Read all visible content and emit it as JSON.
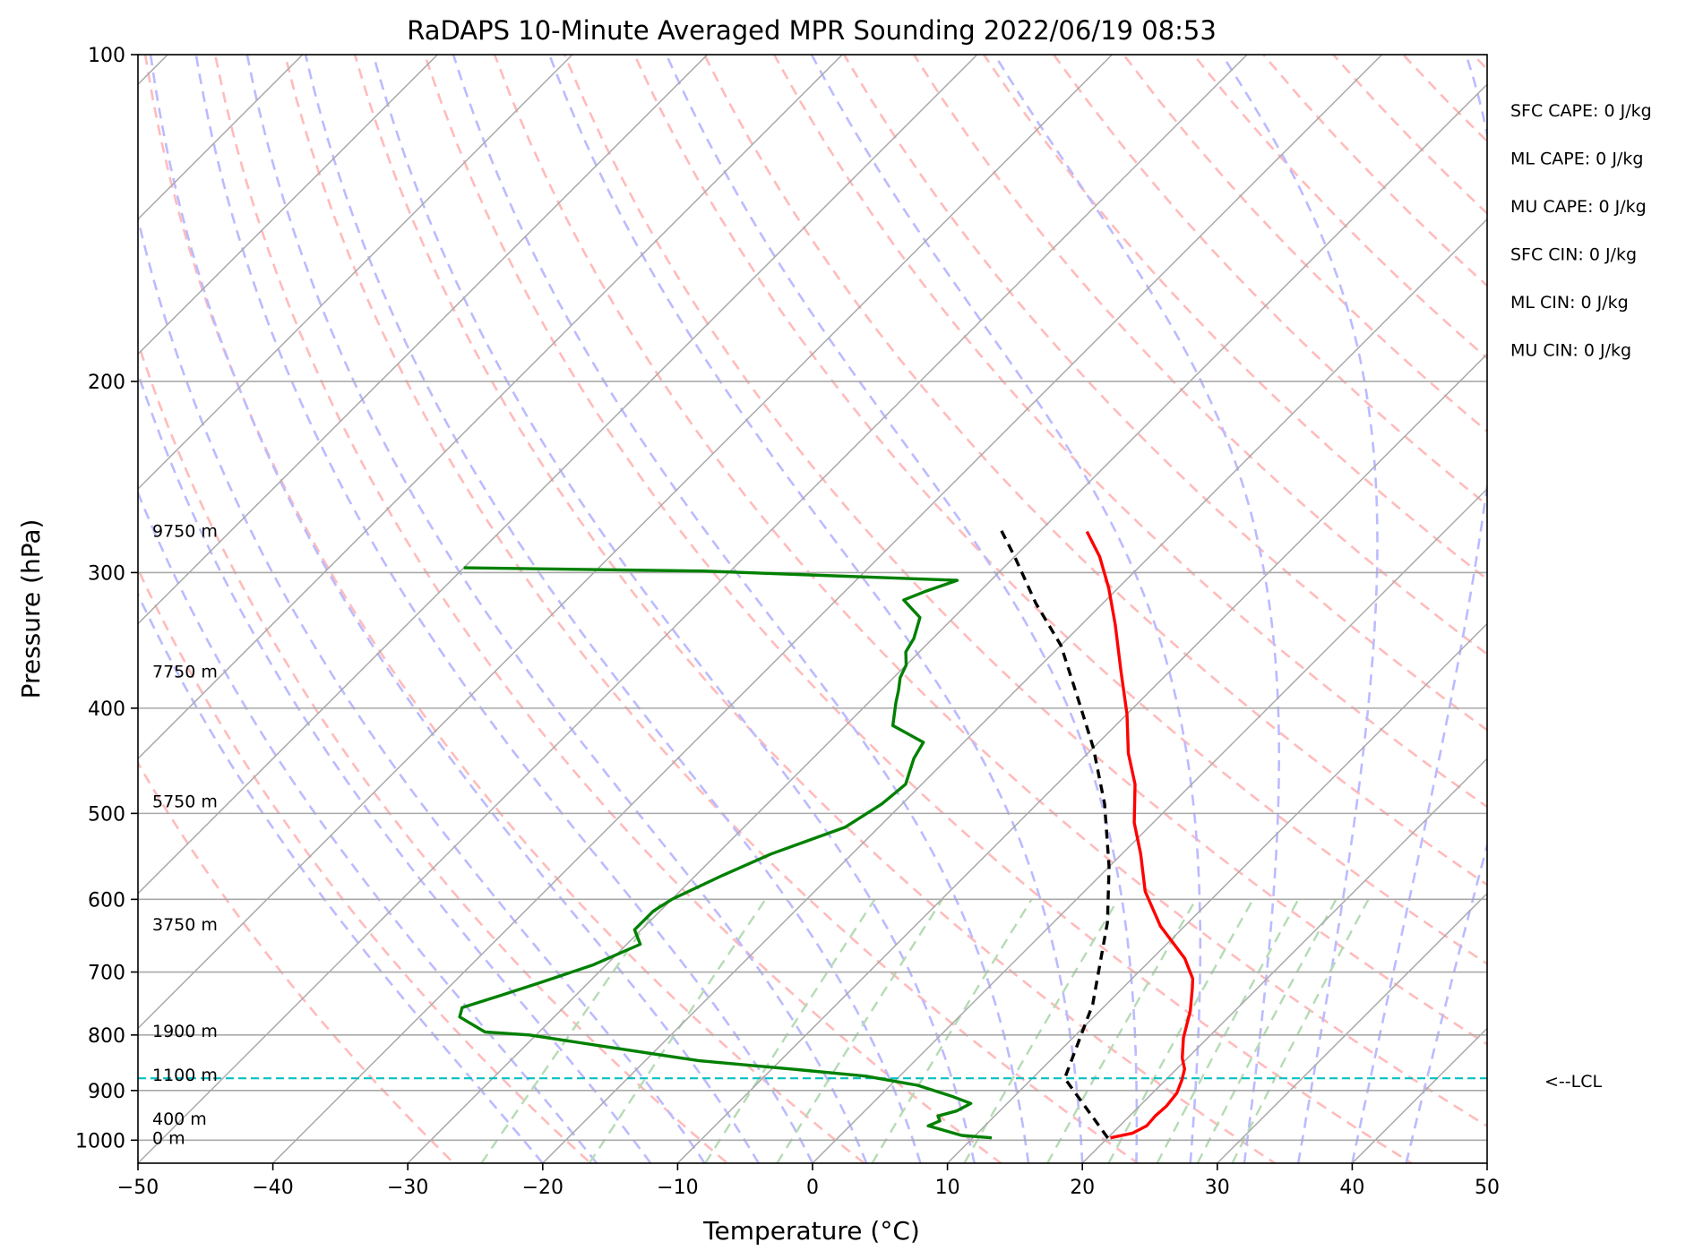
{
  "chart_data": {
    "type": "line",
    "title": "RaDAPS 10-Minute Averaged MPR Sounding 2022/06/19 08:53",
    "xlabel": "Temperature (°C)",
    "ylabel": "Pressure (hPa)",
    "xlim": [
      -50,
      50
    ],
    "ylim": [
      1050,
      100
    ],
    "y_scale": "log",
    "grid": true,
    "x_ticks": [
      -50,
      -40,
      -30,
      -20,
      -10,
      0,
      10,
      20,
      30,
      40,
      50
    ],
    "x_tick_labels": [
      "−50",
      "−40",
      "−30",
      "−20",
      "−10",
      "0",
      "10",
      "20",
      "30",
      "40",
      "50"
    ],
    "y_ticks": [
      100,
      200,
      300,
      400,
      500,
      600,
      700,
      800,
      900,
      1000
    ],
    "y_tick_labels": [
      "100",
      "200",
      "300",
      "400",
      "500",
      "600",
      "700",
      "800",
      "900",
      "1000"
    ],
    "series": [
      {
        "role": "temperature",
        "color": "#ff0000",
        "points": [
          [
            20.2,
            995
          ],
          [
            21.5,
            985
          ],
          [
            22.0,
            970
          ],
          [
            21.9,
            950
          ],
          [
            22.0,
            930
          ],
          [
            21.8,
            905
          ],
          [
            21.2,
            880
          ],
          [
            20.6,
            860
          ],
          [
            19.6,
            840
          ],
          [
            18.2,
            805
          ],
          [
            16.7,
            760
          ],
          [
            15.2,
            725
          ],
          [
            14.5,
            710
          ],
          [
            12.4,
            680
          ],
          [
            8.2,
            635
          ],
          [
            4.5,
            590
          ],
          [
            1.4,
            545
          ],
          [
            -1.4,
            510
          ],
          [
            -4.2,
            470
          ],
          [
            -7.0,
            440
          ],
          [
            -10.0,
            405
          ],
          [
            -13.6,
            370
          ],
          [
            -17.5,
            335
          ],
          [
            -20.7,
            310
          ],
          [
            -23.7,
            290
          ],
          [
            -26.5,
            275
          ]
        ]
      },
      {
        "role": "dewpoint",
        "color": "#008000",
        "points": [
          [
            11.4,
            995
          ],
          [
            9.0,
            990
          ],
          [
            5.8,
            970
          ],
          [
            6.3,
            960
          ],
          [
            5.8,
            950
          ],
          [
            6.8,
            940
          ],
          [
            7.3,
            925
          ],
          [
            5.5,
            912
          ],
          [
            2.0,
            890
          ],
          [
            -2.5,
            873
          ],
          [
            -8.5,
            860
          ],
          [
            -16.0,
            845
          ],
          [
            -24.0,
            820
          ],
          [
            -30.5,
            800
          ],
          [
            -34.0,
            795
          ],
          [
            -37.0,
            770
          ],
          [
            -37.5,
            755
          ],
          [
            -35.5,
            735
          ],
          [
            -33.5,
            715
          ],
          [
            -31.0,
            690
          ],
          [
            -29.0,
            660
          ],
          [
            -30.5,
            640
          ],
          [
            -30.5,
            615
          ],
          [
            -30.0,
            600
          ],
          [
            -28.0,
            570
          ],
          [
            -26.0,
            545
          ],
          [
            -22.5,
            515
          ],
          [
            -21.5,
            490
          ],
          [
            -21.2,
            470
          ],
          [
            -22.5,
            445
          ],
          [
            -23.0,
            430
          ],
          [
            -26.5,
            415
          ],
          [
            -28.0,
            395
          ],
          [
            -28.7,
            385
          ],
          [
            -29.5,
            375
          ],
          [
            -30.0,
            365
          ],
          [
            -31.0,
            355
          ],
          [
            -31.4,
            345
          ],
          [
            -32.5,
            330
          ],
          [
            -35.0,
            318
          ],
          [
            -34.0,
            312
          ],
          [
            -32.5,
            305
          ],
          [
            -52.0,
            299
          ],
          [
            -70.0,
            297
          ]
        ]
      },
      {
        "role": "parcel",
        "color": "#000000",
        "style": "dashed",
        "points": [
          [
            20.0,
            995
          ],
          [
            12.4,
            877
          ],
          [
            9.0,
            750
          ],
          [
            4.0,
            630
          ],
          [
            0.0,
            560
          ],
          [
            -5.0,
            490
          ],
          [
            -10.0,
            435
          ],
          [
            -15.0,
            390
          ],
          [
            -20.0,
            350
          ],
          [
            -25.0,
            320
          ],
          [
            -30.0,
            290
          ],
          [
            -33.0,
            274
          ]
        ]
      }
    ],
    "background_lines": {
      "isotherms_color": "#a9a9a9",
      "dry_adiabats_color": "#ffbbbb",
      "moist_adiabats_color": "#bbbbff",
      "mixing_ratio_color": "#b5dbb5",
      "lcl_line_color": "#00c0c0",
      "lcl_pressure": 877
    },
    "height_labels": [
      {
        "text": "9750 m",
        "p": 276
      },
      {
        "text": "7750 m",
        "p": 372
      },
      {
        "text": "5750 m",
        "p": 490
      },
      {
        "text": "3750 m",
        "p": 636
      },
      {
        "text": "1900 m",
        "p": 797
      },
      {
        "text": "1100 m",
        "p": 875
      },
      {
        "text": "400 m",
        "p": 960
      },
      {
        "text": "0 m",
        "p": 1000
      }
    ],
    "lcl_label": "<--LCL",
    "indices": [
      "SFC CAPE: 0 J/kg",
      "ML CAPE: 0 J/kg",
      "MU CAPE: 0 J/kg",
      "SFC CIN: 0 J/kg",
      "ML CIN: 0 J/kg",
      "MU CIN: 0 J/kg"
    ]
  }
}
